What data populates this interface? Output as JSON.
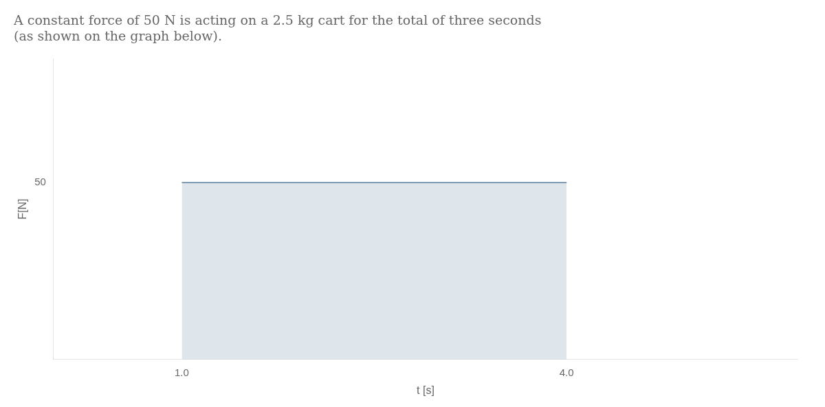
{
  "chart_data": {
    "type": "area",
    "title": [
      "A constant force of 50 N is acting on a 2.5 kg cart for the total of three seconds",
      "(as shown on the graph below)."
    ],
    "x_label": "t [s]",
    "y_label": "F[N]",
    "x": [
      1.0,
      4.0
    ],
    "values": [
      50,
      50
    ],
    "color": "#7a9ab5",
    "xlim": [
      0,
      5.8
    ],
    "ylim": [
      0,
      85
    ],
    "xticks": [
      {
        "value": 1.0,
        "label": "1.0"
      },
      {
        "value": 4.0,
        "label": "4.0"
      }
    ],
    "yticks": [
      50
    ],
    "grid": false
  }
}
